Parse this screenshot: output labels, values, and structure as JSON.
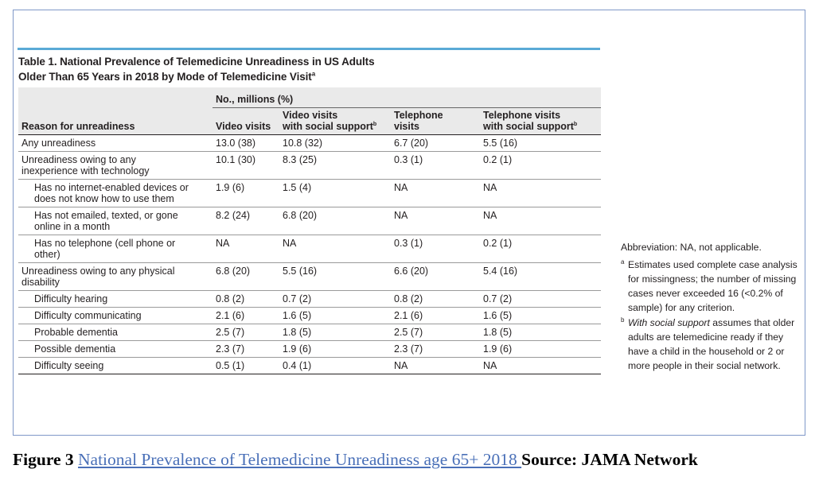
{
  "table": {
    "title_line1": "Table 1. National Prevalence of Telemedicine Unreadiness in US Adults",
    "title_line2": "Older Than 65 Years in 2018 by Mode of Telemedicine Visit",
    "title_footnote_mark": "a",
    "group_header": "No., millions (%)",
    "columns": {
      "reason": "Reason for unreadiness",
      "video": "Video visits",
      "video_support_line1": "Video visits",
      "video_support_line2": "with social support",
      "video_support_mark": "b",
      "telephone_line1": "Telephone",
      "telephone_line2": "visits",
      "telephone_support_line1": "Telephone visits",
      "telephone_support_line2": "with social support",
      "telephone_support_mark": "b"
    },
    "rows": [
      {
        "reason_line1": "Any unreadiness",
        "reason_line2": "",
        "video": "13.0 (38)",
        "video_support": "10.8 (32)",
        "telephone": "6.7 (20)",
        "telephone_support": "5.5 (16)"
      },
      {
        "reason_line1": "Unreadiness owing to any",
        "reason_line2": "inexperience with technology",
        "video": "10.1 (30)",
        "video_support": "8.3 (25)",
        "telephone": "0.3 (1)",
        "telephone_support": "0.2 (1)"
      },
      {
        "reason_line1": "Has no internet-enabled devices or",
        "reason_line2": "does not know how to use them",
        "video": "1.9 (6)",
        "video_support": "1.5 (4)",
        "telephone": "NA",
        "telephone_support": "NA"
      },
      {
        "reason_line1": "Has not emailed, texted, or gone",
        "reason_line2": "online in a month",
        "video": "8.2 (24)",
        "video_support": "6.8 (20)",
        "telephone": "NA",
        "telephone_support": "NA"
      },
      {
        "reason_line1": "Has no telephone (cell phone or",
        "reason_line2": "other)",
        "video": "NA",
        "video_support": "NA",
        "telephone": "0.3 (1)",
        "telephone_support": "0.2 (1)"
      },
      {
        "reason_line1": "Unreadiness owing to any physical",
        "reason_line2": "disability",
        "video": "6.8 (20)",
        "video_support": "5.5 (16)",
        "telephone": "6.6 (20)",
        "telephone_support": "5.4 (16)"
      },
      {
        "reason_line1": "Difficulty hearing",
        "reason_line2": "",
        "video": "0.8 (2)",
        "video_support": "0.7 (2)",
        "telephone": "0.8 (2)",
        "telephone_support": "0.7 (2)"
      },
      {
        "reason_line1": "Difficulty communicating",
        "reason_line2": "",
        "video": "2.1 (6)",
        "video_support": "1.6 (5)",
        "telephone": "2.1 (6)",
        "telephone_support": "1.6 (5)"
      },
      {
        "reason_line1": "Probable dementia",
        "reason_line2": "",
        "video": "2.5 (7)",
        "video_support": "1.8 (5)",
        "telephone": "2.5 (7)",
        "telephone_support": "1.8 (5)"
      },
      {
        "reason_line1": "Possible dementia",
        "reason_line2": "",
        "video": "2.3 (7)",
        "video_support": "1.9 (6)",
        "telephone": "2.3 (7)",
        "telephone_support": "1.9 (6)"
      },
      {
        "reason_line1": "Difficulty seeing",
        "reason_line2": "",
        "video": "0.5 (1)",
        "video_support": "0.4 (1)",
        "telephone": "NA",
        "telephone_support": "NA"
      }
    ]
  },
  "notes": {
    "abbreviation": "Abbreviation: NA, not applicable.",
    "footnote_a_mark": "a",
    "footnote_a": "Estimates used complete case analysis for missingness; the number of missing cases never exceeded 16 (<0.2% of sample) for any criterion.",
    "footnote_b_mark": "b",
    "footnote_b_italic": "With social support",
    "footnote_b_rest": " assumes that older adults are telemedicine ready if they have a child in the household or 2 or more people in their social network."
  },
  "caption": {
    "figure_label": "Figure 3",
    "link_text": "National Prevalence of Telemedicine Unreadiness age 65+ 2018 ",
    "source_text": "Source: JAMA Network"
  },
  "colors": {
    "top_rule": "#5aaad6",
    "frame_border": "#7f98c8",
    "shaded_rows": "#eaeaea",
    "link": "#4a70b8"
  }
}
